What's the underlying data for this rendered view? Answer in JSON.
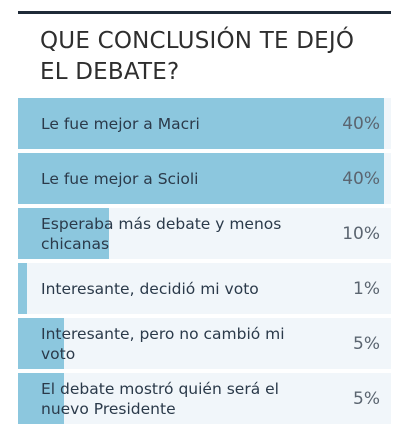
{
  "poll": {
    "title": "QUE CONCLUSIÓN TE DEJÓ EL DEBATE?",
    "accent_color": "#8cc7de",
    "track_color": "#f1f6fa",
    "options": [
      {
        "label": "Le fue mejor a Macri",
        "percent_label": "40%",
        "percent": 40,
        "fill_fraction": 0.98
      },
      {
        "label": "Le fue mejor a Scioli",
        "percent_label": "40%",
        "percent": 40,
        "fill_fraction": 0.98
      },
      {
        "label": "Esperaba más debate y menos chicanas",
        "percent_label": "10%",
        "percent": 10,
        "fill_fraction": 0.245
      },
      {
        "label": "Interesante, decidió mi voto",
        "percent_label": "1%",
        "percent": 1,
        "fill_fraction": 0.025
      },
      {
        "label": "Interesante, pero no cambió mi voto",
        "percent_label": "5%",
        "percent": 5,
        "fill_fraction": 0.122
      },
      {
        "label": "El debate mostró quién será el nuevo Presidente",
        "percent_label": "5%",
        "percent": 5,
        "fill_fraction": 0.122
      }
    ]
  }
}
